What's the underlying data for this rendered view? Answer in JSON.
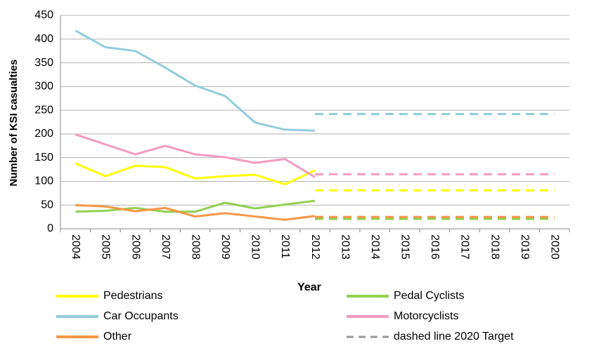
{
  "chart_data": {
    "type": "line",
    "y_label": "Number of KSI casualties",
    "x_label": "Year",
    "categories": [
      "2004",
      "2005",
      "2006",
      "2007",
      "2008",
      "2009",
      "2010",
      "2011",
      "2012",
      "2013",
      "2014",
      "2015",
      "2016",
      "2017",
      "2018",
      "2019",
      "2020"
    ],
    "ylim": [
      0,
      450
    ],
    "yticks": [
      0,
      50,
      100,
      150,
      200,
      250,
      300,
      350,
      400,
      450
    ],
    "grid": true,
    "series": [
      {
        "name": "Pedestrians",
        "color": "#ffff00",
        "values": [
          138,
          111,
          133,
          130,
          106,
          111,
          114,
          94,
          123,
          null,
          null,
          null,
          null,
          null,
          null,
          null,
          null
        ]
      },
      {
        "name": "Pedal Cyclists",
        "color": "#92d050",
        "values": [
          36,
          38,
          44,
          36,
          36,
          55,
          43,
          51,
          59,
          null,
          null,
          null,
          null,
          null,
          null,
          null,
          null
        ]
      },
      {
        "name": "Car Occupants",
        "color": "#92cddc",
        "values": [
          418,
          383,
          375,
          340,
          302,
          280,
          224,
          209,
          207,
          null,
          null,
          null,
          null,
          null,
          null,
          null,
          null
        ]
      },
      {
        "name": "Motorcyclists",
        "color": "#f49ac1",
        "values": [
          199,
          178,
          157,
          175,
          157,
          151,
          139,
          147,
          109,
          null,
          null,
          null,
          null,
          null,
          null,
          null,
          null
        ]
      },
      {
        "name": "Other",
        "color": "#f79646",
        "values": [
          50,
          47,
          37,
          44,
          26,
          33,
          26,
          19,
          27,
          null,
          null,
          null,
          null,
          null,
          null,
          null,
          null
        ]
      }
    ],
    "targets": [
      {
        "color": "#92cddc",
        "values": [
          null,
          null,
          null,
          null,
          null,
          null,
          null,
          null,
          242,
          242,
          242,
          242,
          242,
          242,
          242,
          242,
          242
        ]
      },
      {
        "color": "#f49ac1",
        "values": [
          null,
          null,
          null,
          null,
          null,
          null,
          null,
          null,
          115,
          115,
          115,
          115,
          115,
          115,
          115,
          115,
          115
        ]
      },
      {
        "color": "#ffff00",
        "values": [
          null,
          null,
          null,
          null,
          null,
          null,
          null,
          null,
          81,
          81,
          81,
          81,
          81,
          81,
          81,
          81,
          81
        ]
      },
      {
        "color": "#92d050",
        "values": [
          null,
          null,
          null,
          null,
          null,
          null,
          null,
          null,
          21,
          21,
          21,
          21,
          21,
          21,
          21,
          21,
          21
        ]
      },
      {
        "color": "#f79646",
        "values": [
          null,
          null,
          null,
          null,
          null,
          null,
          null,
          null,
          25,
          25,
          25,
          25,
          25,
          25,
          25,
          25,
          25
        ]
      }
    ],
    "target_legend": {
      "label": "dashed line 2020 Target",
      "color": "#999999"
    }
  }
}
